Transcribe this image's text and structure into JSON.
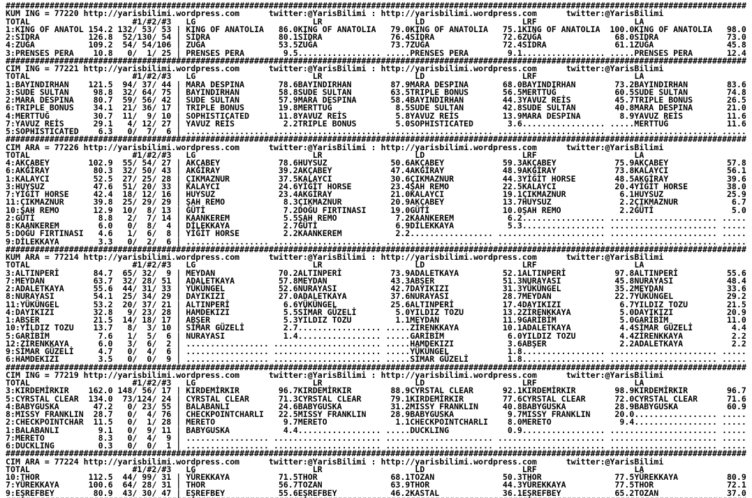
{
  "site": {
    "url": "http://yarisbilimi.wordpress.com",
    "twitter": "twitter:@YarisBilimi",
    "sep": ":"
  },
  "glyphs": {
    "pipe": "|",
    "hr": "########################################################################################################################################################"
  },
  "columns": {
    "total": "TOTAL",
    "p123": "#1/#2/#3",
    "lg": "LG",
    "lr": "LR",
    "ld": "LD",
    "lrf": "LRF",
    "la": "LA"
  },
  "sections": [
    {
      "label": "KUM ING = 77220",
      "rows": [
        [
          "1:KING OF ANATOL",
          "154.2",
          "132/ 53/ 53",
          "KING OF ANATOLIA",
          "86.0",
          "KING OF ANATOLIA",
          "79.0",
          "KING OF ANATOLIA",
          "75.1",
          "KING OF ANATOLIA",
          "100.0",
          "KING OF ANATOLIA",
          "98.0"
        ],
        [
          "2:SİDRA",
          "126.8",
          "52/130/ 54",
          "SİDRA",
          "80.1",
          "SİDRA",
          "76.4",
          "SİDRA",
          "72.6",
          "ZUĞA",
          "68.0",
          "SİDRA",
          "73.0"
        ],
        [
          "4:ZUĞA",
          "109.2",
          "54/ 54/106",
          "ZUĞA",
          "53.5",
          "ZUĞA",
          "73.7",
          "ZUĞA",
          "72.4",
          "SİDRA",
          "61.1",
          "ZUĞA",
          "45.8"
        ],
        [
          "3:PRENSES PERA",
          "10.8",
          "0/  1/ 25",
          "PRENSES PERA",
          "9.5",
          ".................",
          ".....",
          "PRENSES PERA",
          "9.1",
          ".................",
          ".....",
          "PRENSES PERA",
          "12.4"
        ]
      ]
    },
    {
      "label": "CIM ING = 77221",
      "rows": [
        [
          "1:BAYINDIRHAN",
          "121.5",
          "94/ 37/ 44",
          "MARA DESPINA",
          "78.6",
          "BAYINDIRHAN",
          "87.9",
          "MARA DESPINA",
          "68.0",
          "BAYINDIRHAN",
          "73.2",
          "BAYINDIRHAN",
          "83.6"
        ],
        [
          "3:SUDE SULTAN",
          "98.8",
          "32/ 64/ 75",
          "BAYINDIRHAN",
          "58.8",
          "SUDE SULTAN",
          "63.5",
          "TRIPLE BONUS",
          "56.5",
          "MERTTUĞ",
          "60.5",
          "SUDE SULTAN",
          "74.8"
        ],
        [
          "2:MARA DESPINA",
          "80.7",
          "59/ 56/ 42",
          "SUDE SULTAN",
          "57.9",
          "MARA DESPINA",
          "58.4",
          "BAYINDIRHAN",
          "44.3",
          "YAVUZ REİS",
          "45.7",
          "TRIPLE BONUS",
          "26.5"
        ],
        [
          "6:TRIPLE BONUS",
          "34.1",
          "21/ 36/ 17",
          "TRIPLE BONUS",
          "19.8",
          "MERTTUĞ",
          "8.5",
          "SUDE SULTAN",
          "42.8",
          "SUDE SULTAN",
          "40.8",
          "MARA DESPINA",
          "21.0"
        ],
        [
          "4:MERTTUĞ",
          "30.7",
          "11/  9/ 10",
          "SOPHISTICATED",
          "11.8",
          "YAVUZ REİS",
          "5.8",
          "YAVUZ REİS",
          "13.9",
          "MARA DESPINA",
          "8.9",
          "YAVUZ REİS",
          "11.6"
        ],
        [
          "7:YAVUZ REİS",
          "29.1",
          "4/ 12/ 27",
          "YAVUZ REİS",
          "2.2",
          "TRIPLE BONUS",
          "5.0",
          "SOPHISTICATED",
          "3.6",
          ".................",
          ".....",
          "MERTTUĞ",
          "11.6"
        ],
        [
          "5:SOPHISTICATED",
          "6.3",
          "0/  7/  6",
          ".................",
          ".....",
          ".................",
          ".....",
          ".................",
          ".....",
          ".................",
          ".....",
          ".................",
          "....."
        ]
      ]
    },
    {
      "label": "CIM ARA = 77226",
      "rows": [
        [
          "4:AKÇABEY",
          "102.9",
          "55/ 54/ 27",
          "AKÇABEY",
          "78.6",
          "HUYSUZ",
          "50.6",
          "AKÇABEY",
          "59.3",
          "AKÇABEY",
          "75.9",
          "AKÇABEY",
          "57.8"
        ],
        [
          "6:AKGİRAY",
          "80.3",
          "32/ 50/ 43",
          "AKGİRAY",
          "39.2",
          "AKÇABEY",
          "47.4",
          "AKGİRAY",
          "48.9",
          "AKGİRAY",
          "73.8",
          "KALAYCI",
          "56.1"
        ],
        [
          "1:KALAYCI",
          "52.5",
          "27/ 25/ 28",
          "ÇIKMAZNUR",
          "37.5",
          "KALAYCI",
          "30.6",
          "ÇIKMAZNUR",
          "44.3",
          "YİĞİT HORSE",
          "48.5",
          "AKGİRAY",
          "39.6"
        ],
        [
          "3:HUYSUZ",
          "47.6",
          "51/ 20/ 33",
          "KALAYCI",
          "24.6",
          "YİĞİT HORSE",
          "23.4",
          "ŞAH REMO",
          "22.5",
          "KALAYCI",
          "20.4",
          "YİĞİT HORSE",
          "38.0"
        ],
        [
          "7:YİĞİT HORSE",
          "42.4",
          "18/ 12/ 16",
          "HUYSUZ",
          "23.4",
          "AKGİRAY",
          "21.0",
          "KALAYCI",
          "19.1",
          "ÇIKMAZNUR",
          "6.1",
          "HUYSUZ",
          "25.9"
        ],
        [
          "11:ÇIKMAZNUR",
          "39.8",
          "25/ 29/ 29",
          "ŞAH REMO",
          "8.3",
          "ÇIKMAZNUR",
          "20.9",
          "AKÇABEY",
          "13.7",
          "HUYSUZ",
          "2.2",
          "ÇIKMAZNUR",
          "6.7"
        ],
        [
          "10:ŞAH REMO",
          "12.9",
          "10/  8/ 13",
          "GÜTİ",
          "7.2",
          "DOĞU FIRTINASI",
          "19.0",
          "GÜTİ",
          "10.0",
          "ŞAH REMO",
          "2.2",
          "GÜTİ",
          "5.0"
        ],
        [
          "2:GÜTİ",
          "8.8",
          "2/  7/ 14",
          "KAANKEREM",
          "5.5",
          "ŞAH REMO",
          "7.2",
          "KAANKEREM",
          "6.2",
          ".................",
          ".....",
          ".................",
          "....."
        ],
        [
          "8:KAANKEREM",
          "6.0",
          "0/  8/  4",
          "DİLEKKAYA",
          "2.7",
          "GÜTİ",
          "6.9",
          "DİLEKKAYA",
          "5.3",
          ".................",
          ".....",
          ".................",
          "....."
        ],
        [
          "5:DOĞU FIRTINASI",
          "4.6",
          "1/  6/  8",
          "YİĞİT HORSE",
          "2.2",
          "KAANKEREM",
          "2.2",
          ".................",
          ".....",
          ".................",
          ".....",
          ".................",
          "....."
        ],
        [
          "9:DİLEKKAYA",
          "3.3",
          "0/  2/  6",
          ".................",
          ".....",
          ".................",
          ".....",
          ".................",
          ".....",
          ".................",
          ".....",
          ".................",
          "....."
        ]
      ]
    },
    {
      "label": "KUM ARA = 77214",
      "rows": [
        [
          "3:ALTINPERİ",
          "84.7",
          "65/ 32/  9",
          "MEYDAN",
          "70.2",
          "ALTINPERİ",
          "73.9",
          "ADALETKAYA",
          "52.1",
          "ALTINPERİ",
          "97.8",
          "ALTINPERİ",
          "55.6"
        ],
        [
          "7:MEYDAN",
          "63.7",
          "32/ 28/ 51",
          "ADALETKAYA",
          "57.8",
          "MEYDAN",
          "43.3",
          "ABŞER",
          "51.3",
          "NURAYASI",
          "45.8",
          "NURAYASI",
          "48.4"
        ],
        [
          "2:ADALETKAYA",
          "55.6",
          "44/ 31/ 33",
          "YÜKÜNGEL",
          "52.6",
          "NURAYASI",
          "42.7",
          "DAYIKIZI",
          "31.3",
          "YÜKÜNGEL",
          "35.2",
          "MEYDAN",
          "33.6"
        ],
        [
          "8:NURAYASI",
          "54.1",
          "25/ 34/ 29",
          "DAYIKIZI",
          "27.0",
          "ADALETKAYA",
          "37.6",
          "NURAYASI",
          "28.7",
          "MEYDAN",
          "22.7",
          "YÜKÜNGEL",
          "29.2"
        ],
        [
          "11:YÜKÜNGEL",
          "53.2",
          "20/ 37/ 21",
          "ALTINPERİ",
          "6.6",
          "YÜKÜNGEL",
          "25.6",
          "ALTINPERİ",
          "17.4",
          "DAYIKIZI",
          "6.7",
          "YILDIZ TOZU",
          "21.5"
        ],
        [
          "4:DAYIKIZI",
          "32.8",
          "9/ 23/ 28",
          "HAMDEKIZI",
          "5.5",
          "SİMAR GÜZELİ",
          "5.0",
          "YILDIZ TOZU",
          "13.2",
          "ZİRENKKAYA",
          "5.0",
          "DAYIKIZI",
          "20.9"
        ],
        [
          "1:ABŞER",
          "21.5",
          "14/ 18/ 17",
          "ABŞER",
          "5.3",
          "YILDIZ TOZU",
          "1.1",
          "MEYDAN",
          "11.9",
          "GARİBİM",
          "5.0",
          "GARİBİM",
          "11.0"
        ],
        [
          "10:YILDIZ TOZU",
          "13.7",
          "8/  3/ 10",
          "SİMAR GÜZELİ",
          "2.7",
          ".................",
          ".....",
          "ZİRENKKAYA",
          "10.1",
          "ADALETKAYA",
          "4.4",
          "SİMAR GÜZELİ",
          "4.4"
        ],
        [
          "5:GARİBİM",
          "7.6",
          "1/  5/  6",
          "NURAYASI",
          "1.4",
          ".................",
          ".....",
          "GARİBİM",
          "6.0",
          "YILDIZ TOZU",
          "4.4",
          "ZİRENKKAYA",
          "2.2"
        ],
        [
          "12:ZİRENKKAYA",
          "6.0",
          "3/  6/  2",
          ".................",
          ".....",
          ".................",
          ".....",
          "HAMDEKIZI",
          "3.6",
          "ABŞER",
          "2.2",
          "ADALETKAYA",
          "2.2"
        ],
        [
          "9:SİMAR GÜZELİ",
          "4.7",
          "0/  4/  6",
          ".................",
          ".....",
          ".................",
          ".....",
          "YÜKÜNGEL",
          "1.8",
          ".................",
          ".....",
          ".................",
          "....."
        ],
        [
          "6:HAMDEKIZI",
          "3.5",
          "0/  0/  9",
          ".................",
          ".....",
          ".................",
          ".....",
          "SİMAR GÜZELİ",
          "1.8",
          ".................",
          ".....",
          ".................",
          "....."
        ]
      ]
    },
    {
      "label": "CIM ING = 77219",
      "rows": [
        [
          "3:KIRDEMİRKIR",
          "162.0",
          "148/ 56/ 17",
          "KIRDEMİRKIR",
          "96.7",
          "KIRDEMİRKIR",
          "88.9",
          "CYRSTAL CLEAR",
          "92.1",
          "KIRDEMİRKIR",
          "98.9",
          "KIRDEMİRKIR",
          "96.7"
        ],
        [
          "5:CYRSTAL CLEAR",
          "134.0",
          "73/124/ 24",
          "CYRSTAL CLEAR",
          "71.3",
          "CYRSTAL CLEAR",
          "79.1",
          "KIRDEMİRKIR",
          "77.6",
          "CYRSTAL CLEAR",
          "72.0",
          "CYRSTAL CLEAR",
          "71.6"
        ],
        [
          "4:BABYGUSKA",
          "47.2",
          "0/ 23/ 55",
          "BALABANLI",
          "24.6",
          "BABYGUSKA",
          "31.2",
          "MISSY FRANKLIN",
          "40.8",
          "BABYGUSKA",
          "28.9",
          "BABYGUSKA",
          "60.9"
        ],
        [
          "8:MISSY FRANKLIN",
          "28.7",
          "0/  4/ 76",
          "CHECKPOINTCHARLI",
          "22.5",
          "MISSY FRANKLIN",
          "28.9",
          "BABYGUSKA",
          "9.7",
          "MISSY FRANKLIN",
          "20.0",
          ".................",
          "....."
        ],
        [
          "2:CHECKPOINTCHAR",
          "11.5",
          "0/  1/ 28",
          "MERETO",
          "9.7",
          "MERETO",
          "1.1",
          "CHECKPOINTCHARLI",
          "8.0",
          "MERETO",
          "9.4",
          ".................",
          "....."
        ],
        [
          "1:BALABANLI",
          "9.1",
          "0/  9/ 11",
          "BABYGUSKA",
          "4.4",
          ".................",
          ".....",
          "DUCKLING",
          "0.9",
          ".................",
          ".....",
          ".................",
          "....."
        ],
        [
          "7:MERETO",
          "8.3",
          "0/  4/  9",
          ".................",
          ".....",
          ".................",
          ".....",
          ".................",
          ".....",
          ".................",
          ".....",
          ".................",
          "....."
        ],
        [
          "6:DUCKLING",
          "0.3",
          "0/  0/  1",
          ".................",
          ".....",
          ".................",
          ".....",
          ".................",
          ".....",
          ".................",
          ".....",
          ".................",
          "....."
        ]
      ]
    },
    {
      "label": "CIM ARA = 77224",
      "rows": [
        [
          "10:THOR",
          "112.5",
          "44/ 99/ 31",
          "YÜREKKAYA",
          "71.5",
          "THOR",
          "68.1",
          "TOZAN",
          "50.3",
          "THOR",
          "77.5",
          "YÜREKKAYA",
          "80.9"
        ],
        [
          "7:YÜREKKAYA",
          "100.6",
          "64/ 28/ 31",
          "THOR",
          "56.7",
          "TOZAN",
          "63.9",
          "THOR",
          "44.3",
          "YÜREKKAYA",
          "77.5",
          "THOR",
          "72.1"
        ],
        [
          "9:EŞREFBEY",
          "80.9",
          "43/ 30/ 47",
          "EŞREFBEY",
          "55.6",
          "EŞREFBEY",
          "46.2",
          "KASTAL",
          "36.1",
          "EŞREFBEY",
          "65.2",
          "TOZAN",
          "37.0"
        ]
      ]
    }
  ]
}
